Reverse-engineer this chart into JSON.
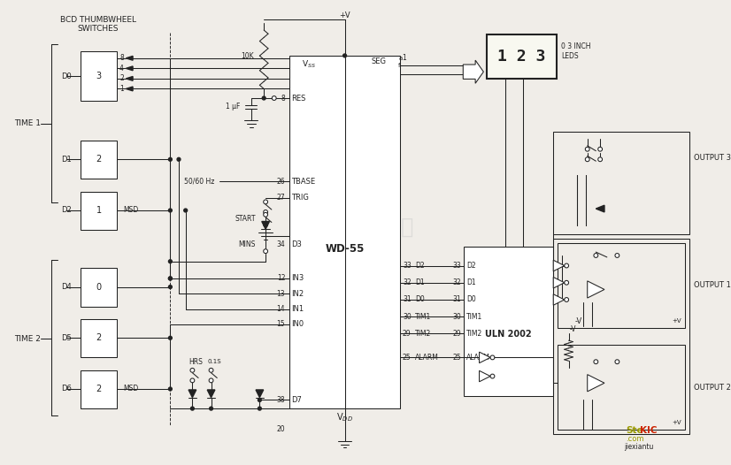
{
  "bg": "#f0ede8",
  "lc": "#222222",
  "wm": "杭州溶睿科技有限公司",
  "wm_color": "#cccccc",
  "title": "BCD THUMBWHEEL\nSWITCHES",
  "ic1": "WD-55",
  "ic2": "ULN 2002",
  "leds": "0 3 INCH\nLEDS",
  "out1": "OUTPUT 1",
  "out2": "OUTPUT 2",
  "out3": "OUTPUT 3",
  "logo_ste": "Ste",
  "logo_kic": "KIC",
  "logo_com": ".com",
  "logo_jxt": "jiexiantu"
}
